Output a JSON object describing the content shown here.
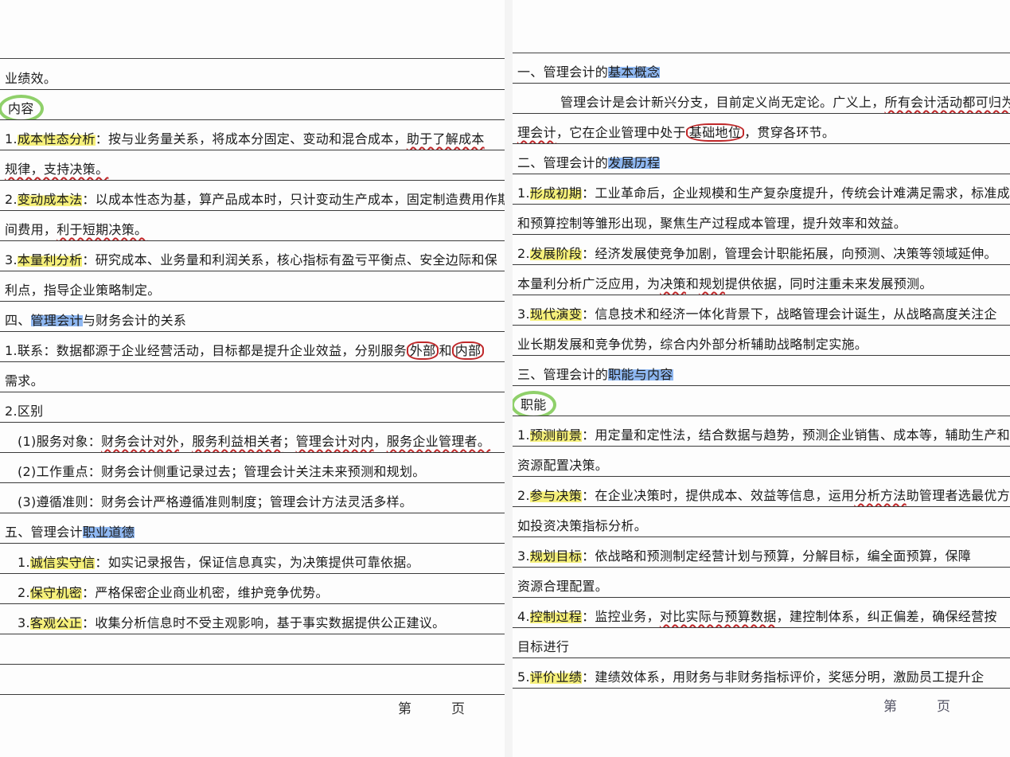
{
  "left_page": {
    "rows": [
      [
        {
          "t": "业绩效。"
        }
      ],
      [
        {
          "t": "内容",
          "mark": "circle-green"
        }
      ],
      [
        {
          "t": "1."
        },
        {
          "t": "成本性态分析",
          "hl": "yellow"
        },
        {
          "t": "：按与业务量关系，将成本分固定、变动和混合成本，"
        },
        {
          "t": "助于了解成本",
          "u": "red"
        }
      ],
      [
        {
          "t": "规律，支持决策。",
          "u": "red"
        }
      ],
      [
        {
          "t": "2."
        },
        {
          "t": "变动成本法",
          "hl": "yellow"
        },
        {
          "t": "：以成本性态为基，算产品成本时，只计变动生产成本，固定制造费用作期"
        }
      ],
      [
        {
          "t": "间费用，"
        },
        {
          "t": "利于短期决策。",
          "u": "red"
        }
      ],
      [
        {
          "t": "3."
        },
        {
          "t": "本量利分析",
          "hl": "yellow"
        },
        {
          "t": "：研究成本、业务量和利润关系，核心指标有盈亏平衡点、安全边际和保"
        }
      ],
      [
        {
          "t": "利点，指导企业策略制定。"
        }
      ],
      [
        {
          "t": "四、"
        },
        {
          "t": "管理会计",
          "hl": "blue"
        },
        {
          "t": "与财务会计的关系"
        }
      ],
      [
        {
          "t": "1.联系：数据都源于企业经营活动，目标都是提升企业效益，分别服务"
        },
        {
          "t": "外部",
          "mark": "circle-red"
        },
        {
          "t": "和"
        },
        {
          "t": "内部",
          "mark": "circle-red"
        }
      ],
      [
        {
          "t": "需求。"
        }
      ],
      [
        {
          "t": "2.区别"
        }
      ],
      [
        {
          "t": "(1)服务对象："
        },
        {
          "t": "财务会计对外",
          "u": "red"
        },
        {
          "t": "，"
        },
        {
          "t": "服务利益相关者",
          "u": "red"
        },
        {
          "t": "；"
        },
        {
          "t": "管理会计对内",
          "u": "red"
        },
        {
          "t": "，"
        },
        {
          "t": "服务企业管理者。",
          "u": "red"
        }
      ],
      [
        {
          "t": "(2)工作重点：财务会计侧重记录过去；管理会计关注未来预测和规划。"
        }
      ],
      [
        {
          "t": "(3)遵循准则：财务会计严格遵循准则制度；管理会计方法灵活多样。"
        }
      ],
      [
        {
          "t": "五、管理会计"
        },
        {
          "t": "职业道德",
          "hl": "blue"
        }
      ],
      [
        {
          "t": "1."
        },
        {
          "t": "诚信实守信",
          "hl": "yellow"
        },
        {
          "t": "：如实记录报告，保证信息真实，为决策提供可靠依据。"
        }
      ],
      [
        {
          "t": "2."
        },
        {
          "t": "保守机密",
          "hl": "yellow"
        },
        {
          "t": "：严格保密企业商业机密，维护竞争优势。"
        }
      ],
      [
        {
          "t": "3."
        },
        {
          "t": "客观公正",
          "hl": "yellow"
        },
        {
          "t": "：收集分析信息时不受主观影响，基于事实数据提供公正建议。"
        }
      ],
      [],
      []
    ],
    "footer": "第页"
  },
  "right_page": {
    "rows": [
      [
        {
          "t": "一、管理会计的"
        },
        {
          "t": "基本概念",
          "hl": "blue"
        }
      ],
      [
        {
          "t": "管理会计是会计新兴分支，目前定义尚无定论。广义上，"
        },
        {
          "t": "所有会计活动都可归为管",
          "u": "red"
        }
      ],
      [
        {
          "t": "理会计",
          "u": "red"
        },
        {
          "t": "，它在企业管理中处于"
        },
        {
          "t": "基础地位",
          "mark": "circle-red"
        },
        {
          "t": "，贯穿各环节。"
        }
      ],
      [
        {
          "t": "二、管理会计的"
        },
        {
          "t": "发展历程",
          "hl": "blue"
        }
      ],
      [
        {
          "t": "1."
        },
        {
          "t": "形成初期",
          "hl": "yellow"
        },
        {
          "t": "：工业革命后，企业规模和生产复杂度提升，传统会计难满足需求，标准成本法"
        }
      ],
      [
        {
          "t": "和预算控制等雏形出现，聚焦生产过程成本管理，提升效率和效益。"
        }
      ],
      [
        {
          "t": "2."
        },
        {
          "t": "发展阶段",
          "hl": "yellow"
        },
        {
          "t": "：经济发展使竞争加剧，管理会计职能拓展，向预测、决策等领域延伸。"
        }
      ],
      [
        {
          "t": "本量利分析广泛应用，为"
        },
        {
          "t": "决策",
          "u": "red"
        },
        {
          "t": "和"
        },
        {
          "t": "规划",
          "u": "red"
        },
        {
          "t": "提供依据，同时注重未来发展预测。"
        }
      ],
      [
        {
          "t": "3."
        },
        {
          "t": "现代演变",
          "hl": "yellow"
        },
        {
          "t": "：信息技术和经济一体化背景下，战略管理会计诞生，从战略高度关注企"
        }
      ],
      [
        {
          "t": "业长期发展和竞争优势，综合内外部分析辅助战略制定实施。"
        }
      ],
      [
        {
          "t": "三、管理会计的"
        },
        {
          "t": "职能与内容",
          "hl": "blue"
        }
      ],
      [
        {
          "t": "职能",
          "mark": "circle-green"
        }
      ],
      [
        {
          "t": "1."
        },
        {
          "t": "预测前景",
          "hl": "yellow"
        },
        {
          "t": "：用定量和定性法，结合数据与趋势，预测企业销售、成本等，辅助生产和"
        }
      ],
      [
        {
          "t": "资源配置决策。"
        }
      ],
      [
        {
          "t": "2."
        },
        {
          "t": "参与决策",
          "hl": "yellow"
        },
        {
          "t": "：在企业决策时，提供成本、效益等信息，运用"
        },
        {
          "t": "分析方法",
          "u": "red"
        },
        {
          "t": "助管理者选最优方案，"
        }
      ],
      [
        {
          "t": "如投资决策指标分析。"
        }
      ],
      [
        {
          "t": "3."
        },
        {
          "t": "规划目标",
          "hl": "yellow"
        },
        {
          "t": "：依战略和预测制定经营计划与预算，分解目标，编全面预算，保障"
        }
      ],
      [
        {
          "t": "资源合理配置。"
        }
      ],
      [
        {
          "t": "4."
        },
        {
          "t": "控制过程",
          "hl": "yellow"
        },
        {
          "t": "：监控业务，"
        },
        {
          "t": "对比实际与预算数据",
          "u": "red"
        },
        {
          "t": "，建控制体系，纠正偏差，确保经营按"
        }
      ],
      [
        {
          "t": "目标进行"
        }
      ],
      [
        {
          "t": "5."
        },
        {
          "t": "评价业绩",
          "hl": "yellow"
        },
        {
          "t": "：建绩效体系，用财务与非财务指标评价，奖惩分明，激励员工提升企"
        }
      ]
    ],
    "footer": "第页"
  },
  "colors": {
    "highlight_yellow": "#f6f07a",
    "highlight_blue": "#8fb8f2",
    "annotation_red": "#c0282a",
    "circle_green": "#8fd06a"
  }
}
